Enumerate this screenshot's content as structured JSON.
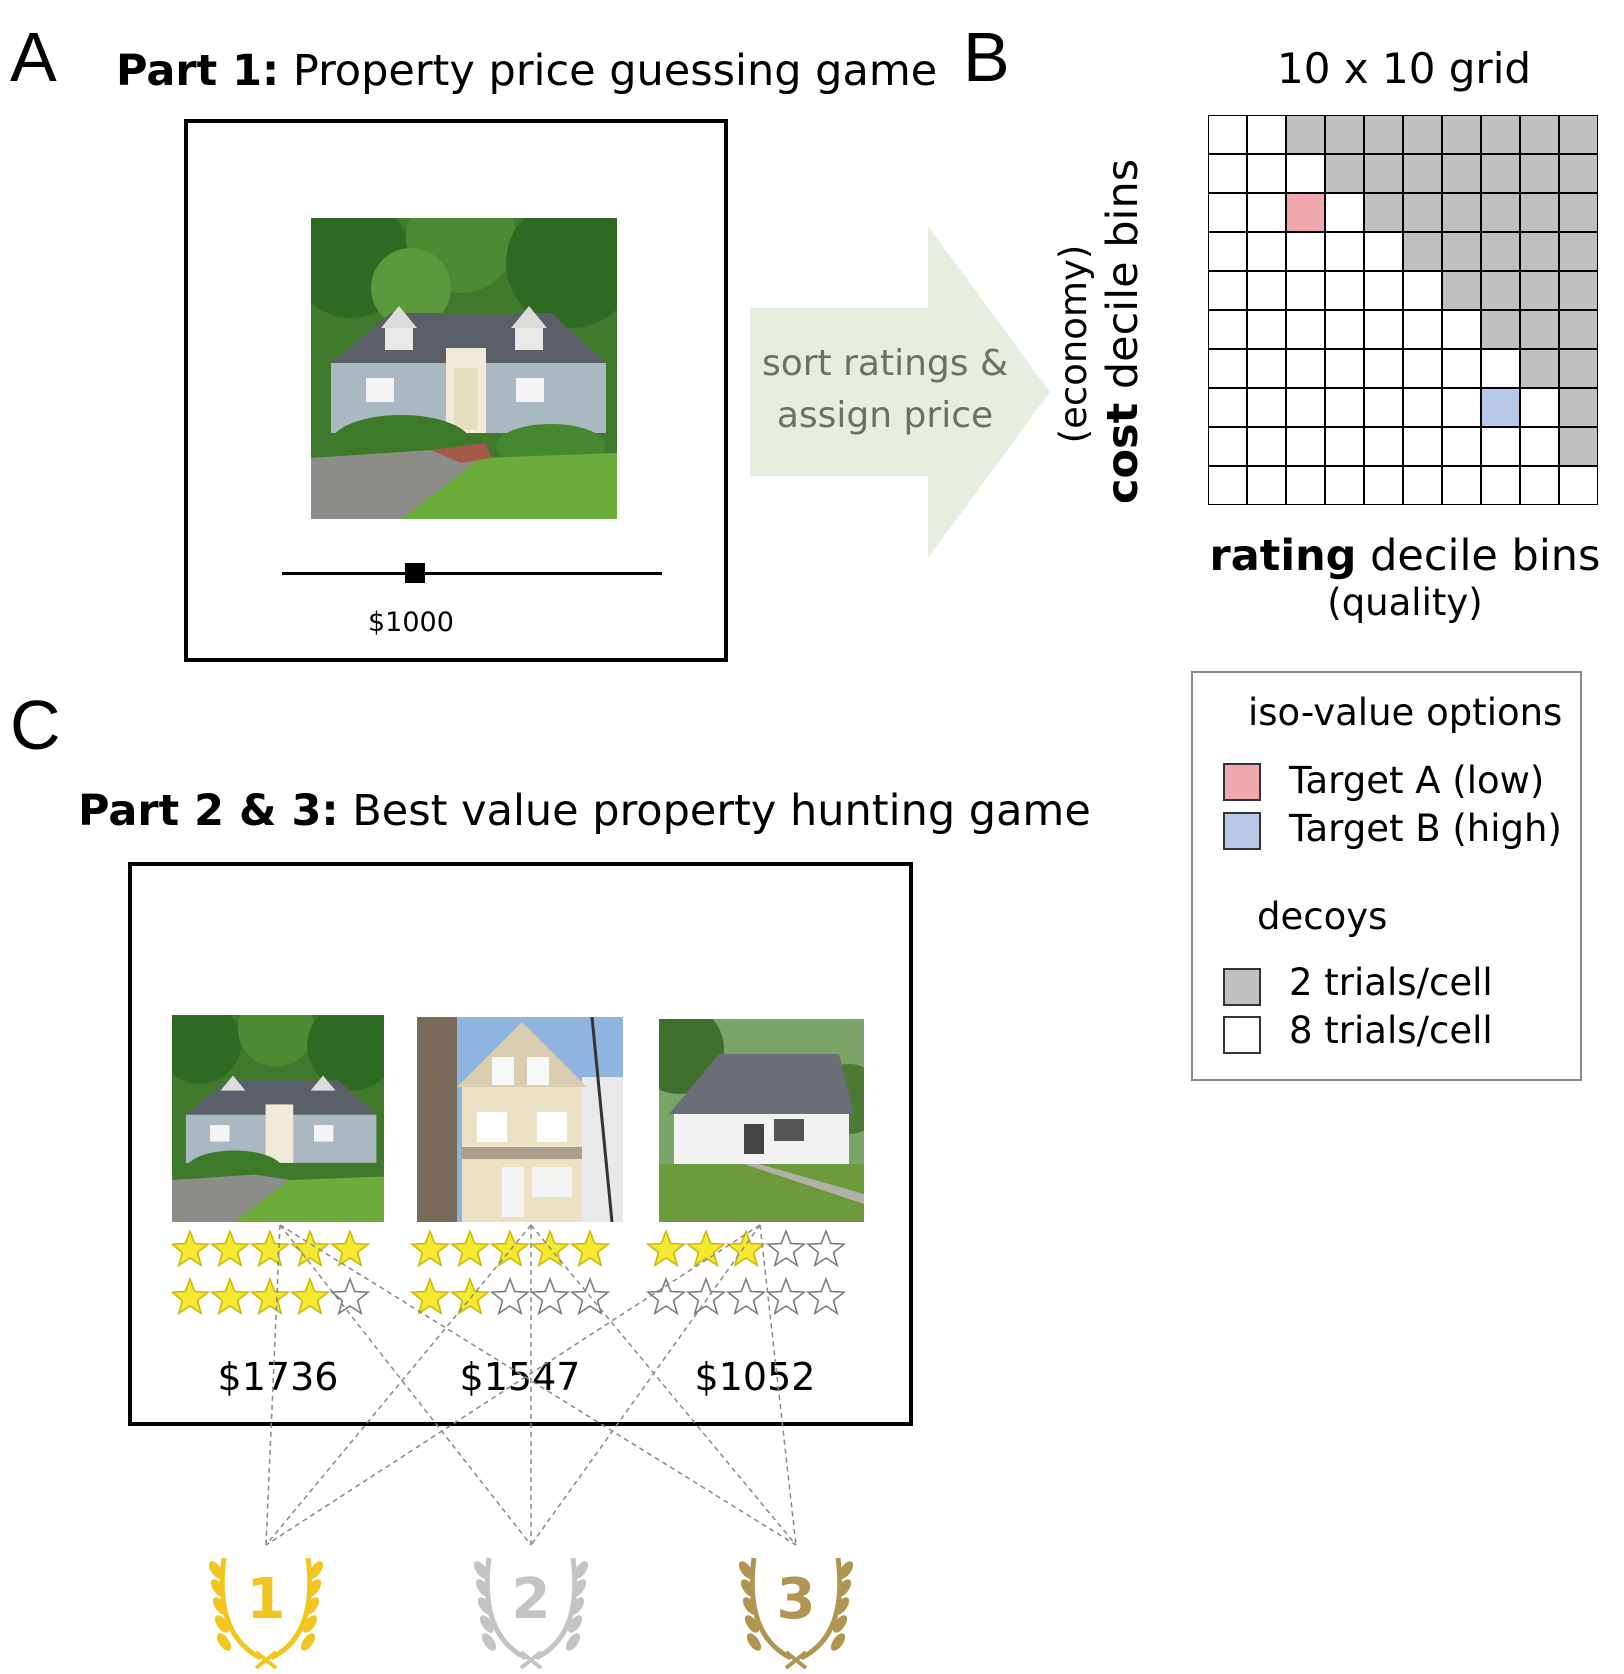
{
  "panels": {
    "a": "A",
    "b": "B",
    "c": "C"
  },
  "part1": {
    "bold": "Part 1:",
    "rest": " Property price guessing game"
  },
  "slider": {
    "value_label": "$1000",
    "level": 0.35
  },
  "arrow": {
    "line1": "sort ratings &",
    "line2": "assign price",
    "color": "#e6eedf",
    "text_color": "#6e6e6e"
  },
  "grid": {
    "title": "10 x 10 grid",
    "x_label_bold": "rating",
    "x_label_rest": " decile bins",
    "x_sub": "(quality)",
    "y_label_bold": "cost",
    "y_label_rest": " decile bins",
    "y_sub": "(economy)",
    "size": 10,
    "gray_color": "#c0c0c0",
    "target_a": {
      "row": 2,
      "col": 2,
      "color": "#f0a8ae"
    },
    "target_b": {
      "row": 7,
      "col": 7,
      "color": "#b8c8e6"
    }
  },
  "legend": {
    "iso_title": "iso-value options",
    "target_a": "Target A (low)",
    "target_b": "Target B (high)",
    "decoy_title": "decoys",
    "gray_label": "2 trials/cell",
    "white_label": "8 trials/cell"
  },
  "part23": {
    "bold": "Part 2 & 3:",
    "rest": " Best value property hunting game"
  },
  "options": [
    {
      "stars_top": 5,
      "stars_bottom": 4,
      "price": "$1736",
      "icon": "house-blue-cape-icon"
    },
    {
      "stars_top": 5,
      "stars_bottom": 2,
      "price": "$1547",
      "icon": "house-tall-beige-icon"
    },
    {
      "stars_top": 3,
      "stars_bottom": 0,
      "price": "$1052",
      "icon": "house-white-ranch-icon"
    }
  ],
  "ranks": [
    {
      "label": "1",
      "color": "#f2c521"
    },
    {
      "label": "2",
      "color": "#c4c4c4"
    },
    {
      "label": "3",
      "color": "#b09452"
    }
  ]
}
